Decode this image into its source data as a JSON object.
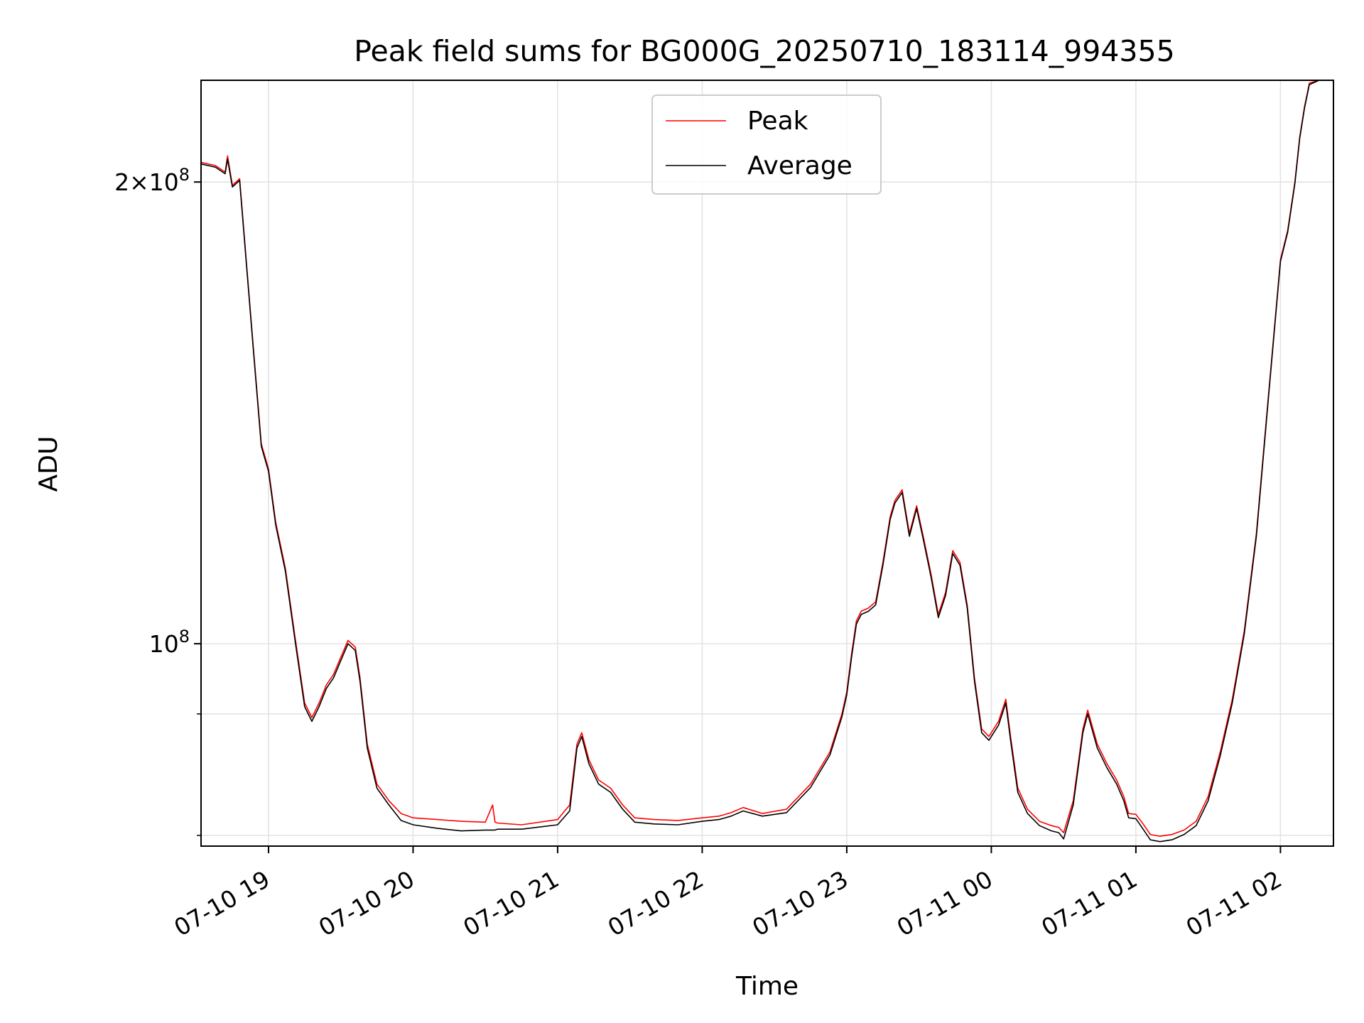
{
  "chart_data": {
    "type": "line",
    "title": "Peak field sums for BG000G_20250710_183114_994355",
    "xlabel": "Time",
    "ylabel": "ADU",
    "y_scale": "log",
    "grid": true,
    "legend_position": "top-center",
    "x_range": [
      "2025-07-10 18:32",
      "2025-07-11 02:22"
    ],
    "y_range": [
      73800000,
      233000000
    ],
    "x_ticks": [
      {
        "value": "2025-07-10 19:00",
        "label": "07-10 19"
      },
      {
        "value": "2025-07-10 20:00",
        "label": "07-10 20"
      },
      {
        "value": "2025-07-10 21:00",
        "label": "07-10 21"
      },
      {
        "value": "2025-07-10 22:00",
        "label": "07-10 22"
      },
      {
        "value": "2025-07-10 23:00",
        "label": "07-10 23"
      },
      {
        "value": "2025-07-11 00:00",
        "label": "07-11 00"
      },
      {
        "value": "2025-07-11 01:00",
        "label": "07-11 01"
      },
      {
        "value": "2025-07-11 02:00",
        "label": "07-11 02"
      }
    ],
    "y_major_ticks": [
      {
        "value": 100000000,
        "base": "10",
        "exp": "8"
      },
      {
        "value": 200000000,
        "base": "2×10",
        "exp": "8"
      }
    ],
    "y_minor_ticks": [
      75000000,
      90000000
    ],
    "series": [
      {
        "name": "Peak",
        "color": "#ff0000",
        "x": [
          "2025-07-10 18:32",
          "2025-07-10 18:38",
          "2025-07-10 18:42",
          "2025-07-10 18:43",
          "2025-07-10 18:45",
          "2025-07-10 18:48",
          "2025-07-10 18:51",
          "2025-07-10 18:54",
          "2025-07-10 18:57",
          "2025-07-10 19:00",
          "2025-07-10 19:03",
          "2025-07-10 19:07",
          "2025-07-10 19:11",
          "2025-07-10 19:15",
          "2025-07-10 19:18",
          "2025-07-10 19:21",
          "2025-07-10 19:24",
          "2025-07-10 19:27",
          "2025-07-10 19:30",
          "2025-07-10 19:33",
          "2025-07-10 19:36",
          "2025-07-10 19:38",
          "2025-07-10 19:41",
          "2025-07-10 19:45",
          "2025-07-10 19:50",
          "2025-07-10 19:55",
          "2025-07-10 20:00",
          "2025-07-10 20:10",
          "2025-07-10 20:20",
          "2025-07-10 20:30",
          "2025-07-10 20:33",
          "2025-07-10 20:34",
          "2025-07-10 20:35",
          "2025-07-10 20:45",
          "2025-07-10 21:00",
          "2025-07-10 21:05",
          "2025-07-10 21:08",
          "2025-07-10 21:10",
          "2025-07-10 21:13",
          "2025-07-10 21:17",
          "2025-07-10 21:22",
          "2025-07-10 21:27",
          "2025-07-10 21:32",
          "2025-07-10 21:40",
          "2025-07-10 21:50",
          "2025-07-10 22:00",
          "2025-07-10 22:07",
          "2025-07-10 22:12",
          "2025-07-10 22:17",
          "2025-07-10 22:25",
          "2025-07-10 22:35",
          "2025-07-10 22:45",
          "2025-07-10 22:53",
          "2025-07-10 22:58",
          "2025-07-10 23:00",
          "2025-07-10 23:02",
          "2025-07-10 23:04",
          "2025-07-10 23:06",
          "2025-07-10 23:09",
          "2025-07-10 23:12",
          "2025-07-10 23:15",
          "2025-07-10 23:18",
          "2025-07-10 23:20",
          "2025-07-10 23:23",
          "2025-07-10 23:26",
          "2025-07-10 23:29",
          "2025-07-10 23:32",
          "2025-07-10 23:35",
          "2025-07-10 23:38",
          "2025-07-10 23:41",
          "2025-07-10 23:44",
          "2025-07-10 23:47",
          "2025-07-10 23:50",
          "2025-07-10 23:53",
          "2025-07-10 23:56",
          "2025-07-10 23:59",
          "2025-07-11 00:03",
          "2025-07-11 00:06",
          "2025-07-11 00:08",
          "2025-07-11 00:11",
          "2025-07-11 00:15",
          "2025-07-11 00:20",
          "2025-07-11 00:25",
          "2025-07-11 00:28",
          "2025-07-11 00:30",
          "2025-07-11 00:34",
          "2025-07-11 00:38",
          "2025-07-11 00:40",
          "2025-07-11 00:44",
          "2025-07-11 00:48",
          "2025-07-11 00:52",
          "2025-07-11 00:55",
          "2025-07-11 00:57",
          "2025-07-11 01:00",
          "2025-07-11 01:03",
          "2025-07-11 01:06",
          "2025-07-11 01:10",
          "2025-07-11 01:15",
          "2025-07-11 01:20",
          "2025-07-11 01:25",
          "2025-07-11 01:30",
          "2025-07-11 01:35",
          "2025-07-11 01:40",
          "2025-07-11 01:45",
          "2025-07-11 01:50",
          "2025-07-11 01:55",
          "2025-07-11 02:00",
          "2025-07-11 02:03",
          "2025-07-11 02:06",
          "2025-07-11 02:08",
          "2025-07-11 02:10",
          "2025-07-11 02:12",
          "2025-07-11 02:16",
          "2025-07-11 02:22"
        ],
        "y": [
          206000000,
          205000000,
          203000000,
          208000000,
          199000000,
          201000000,
          176000000,
          154000000,
          135000000,
          130000000,
          120000000,
          112000000,
          101000000,
          91500000,
          89500000,
          91500000,
          94000000,
          95500000,
          98000000,
          100500000,
          99500000,
          95000000,
          86000000,
          81000000,
          79000000,
          77500000,
          77000000,
          76800000,
          76600000,
          76500000,
          78500000,
          76500000,
          76400000,
          76200000,
          76800000,
          78500000,
          86000000,
          87500000,
          84000000,
          81500000,
          80500000,
          78500000,
          77000000,
          76800000,
          76700000,
          77000000,
          77200000,
          77600000,
          78200000,
          77500000,
          78000000,
          81000000,
          85000000,
          90000000,
          93000000,
          98500000,
          103500000,
          105000000,
          105500000,
          106500000,
          113000000,
          121000000,
          124000000,
          126000000,
          118000000,
          123000000,
          117000000,
          111000000,
          104500000,
          108000000,
          115000000,
          113000000,
          106000000,
          95000000,
          88000000,
          87000000,
          89000000,
          92000000,
          87000000,
          80500000,
          78000000,
          76600000,
          76100000,
          75900000,
          75300000,
          79000000,
          88000000,
          90500000,
          86000000,
          83500000,
          81500000,
          79500000,
          77500000,
          77400000,
          76300000,
          75100000,
          74900000,
          75100000,
          75600000,
          76600000,
          79500000,
          85000000,
          92000000,
          102000000,
          118000000,
          145000000,
          178000000,
          186000000,
          200000000,
          214000000,
          224000000,
          232000000,
          233000000,
          233000000
        ]
      },
      {
        "name": "Average",
        "color": "#000000",
        "x": [
          "2025-07-10 18:32",
          "2025-07-10 18:38",
          "2025-07-10 18:42",
          "2025-07-10 18:43",
          "2025-07-10 18:45",
          "2025-07-10 18:48",
          "2025-07-10 18:51",
          "2025-07-10 18:54",
          "2025-07-10 18:57",
          "2025-07-10 19:00",
          "2025-07-10 19:03",
          "2025-07-10 19:07",
          "2025-07-10 19:11",
          "2025-07-10 19:15",
          "2025-07-10 19:18",
          "2025-07-10 19:21",
          "2025-07-10 19:24",
          "2025-07-10 19:27",
          "2025-07-10 19:30",
          "2025-07-10 19:33",
          "2025-07-10 19:36",
          "2025-07-10 19:38",
          "2025-07-10 19:41",
          "2025-07-10 19:45",
          "2025-07-10 19:50",
          "2025-07-10 19:55",
          "2025-07-10 20:00",
          "2025-07-10 20:10",
          "2025-07-10 20:20",
          "2025-07-10 20:30",
          "2025-07-10 20:33",
          "2025-07-10 20:34",
          "2025-07-10 20:35",
          "2025-07-10 20:45",
          "2025-07-10 21:00",
          "2025-07-10 21:05",
          "2025-07-10 21:08",
          "2025-07-10 21:10",
          "2025-07-10 21:13",
          "2025-07-10 21:17",
          "2025-07-10 21:22",
          "2025-07-10 21:27",
          "2025-07-10 21:32",
          "2025-07-10 21:40",
          "2025-07-10 21:50",
          "2025-07-10 22:00",
          "2025-07-10 22:07",
          "2025-07-10 22:12",
          "2025-07-10 22:17",
          "2025-07-10 22:25",
          "2025-07-10 22:35",
          "2025-07-10 22:45",
          "2025-07-10 22:53",
          "2025-07-10 22:58",
          "2025-07-10 23:00",
          "2025-07-10 23:02",
          "2025-07-10 23:04",
          "2025-07-10 23:06",
          "2025-07-10 23:09",
          "2025-07-10 23:12",
          "2025-07-10 23:15",
          "2025-07-10 23:18",
          "2025-07-10 23:20",
          "2025-07-10 23:23",
          "2025-07-10 23:26",
          "2025-07-10 23:29",
          "2025-07-10 23:32",
          "2025-07-10 23:35",
          "2025-07-10 23:38",
          "2025-07-10 23:41",
          "2025-07-10 23:44",
          "2025-07-10 23:47",
          "2025-07-10 23:50",
          "2025-07-10 23:53",
          "2025-07-10 23:56",
          "2025-07-10 23:59",
          "2025-07-11 00:03",
          "2025-07-11 00:06",
          "2025-07-11 00:08",
          "2025-07-11 00:11",
          "2025-07-11 00:15",
          "2025-07-11 00:20",
          "2025-07-11 00:25",
          "2025-07-11 00:28",
          "2025-07-11 00:30",
          "2025-07-11 00:34",
          "2025-07-11 00:38",
          "2025-07-11 00:40",
          "2025-07-11 00:44",
          "2025-07-11 00:48",
          "2025-07-11 00:52",
          "2025-07-11 00:55",
          "2025-07-11 00:57",
          "2025-07-11 01:00",
          "2025-07-11 01:03",
          "2025-07-11 01:06",
          "2025-07-11 01:10",
          "2025-07-11 01:15",
          "2025-07-11 01:20",
          "2025-07-11 01:25",
          "2025-07-11 01:30",
          "2025-07-11 01:35",
          "2025-07-11 01:40",
          "2025-07-11 01:45",
          "2025-07-11 01:50",
          "2025-07-11 01:55",
          "2025-07-11 02:00",
          "2025-07-11 02:03",
          "2025-07-11 02:06",
          "2025-07-11 02:08",
          "2025-07-11 02:10",
          "2025-07-11 02:12",
          "2025-07-11 02:16",
          "2025-07-11 02:22"
        ],
        "y": [
          205500000,
          204500000,
          202500000,
          207000000,
          198500000,
          200500000,
          175500000,
          153500000,
          134500000,
          129500000,
          119500000,
          111500000,
          100500000,
          91000000,
          89000000,
          91000000,
          93500000,
          95000000,
          97500000,
          100000000,
          99000000,
          94500000,
          85500000,
          80500000,
          78500000,
          76700000,
          76200000,
          75800000,
          75500000,
          75600000,
          75600000,
          75600000,
          75700000,
          75700000,
          76200000,
          77800000,
          85500000,
          87000000,
          83500000,
          81000000,
          80000000,
          78000000,
          76500000,
          76300000,
          76200000,
          76600000,
          76800000,
          77200000,
          77800000,
          77200000,
          77600000,
          80600000,
          84600000,
          89600000,
          92600000,
          98000000,
          103000000,
          104500000,
          105000000,
          106000000,
          112500000,
          120500000,
          123500000,
          125500000,
          117500000,
          122500000,
          116500000,
          110500000,
          104000000,
          107500000,
          114500000,
          112500000,
          105500000,
          94500000,
          87500000,
          86500000,
          88500000,
          91500000,
          86500000,
          80000000,
          77500000,
          76100000,
          75500000,
          75300000,
          74600000,
          78500000,
          87500000,
          90000000,
          85500000,
          83000000,
          81000000,
          79000000,
          77000000,
          76900000,
          75700000,
          74500000,
          74300000,
          74500000,
          75100000,
          76100000,
          79000000,
          84500000,
          91500000,
          101500000,
          117500000,
          144500000,
          177500000,
          185500000,
          199500000,
          213500000,
          223500000,
          231500000,
          233000000,
          233000000
        ]
      }
    ]
  }
}
